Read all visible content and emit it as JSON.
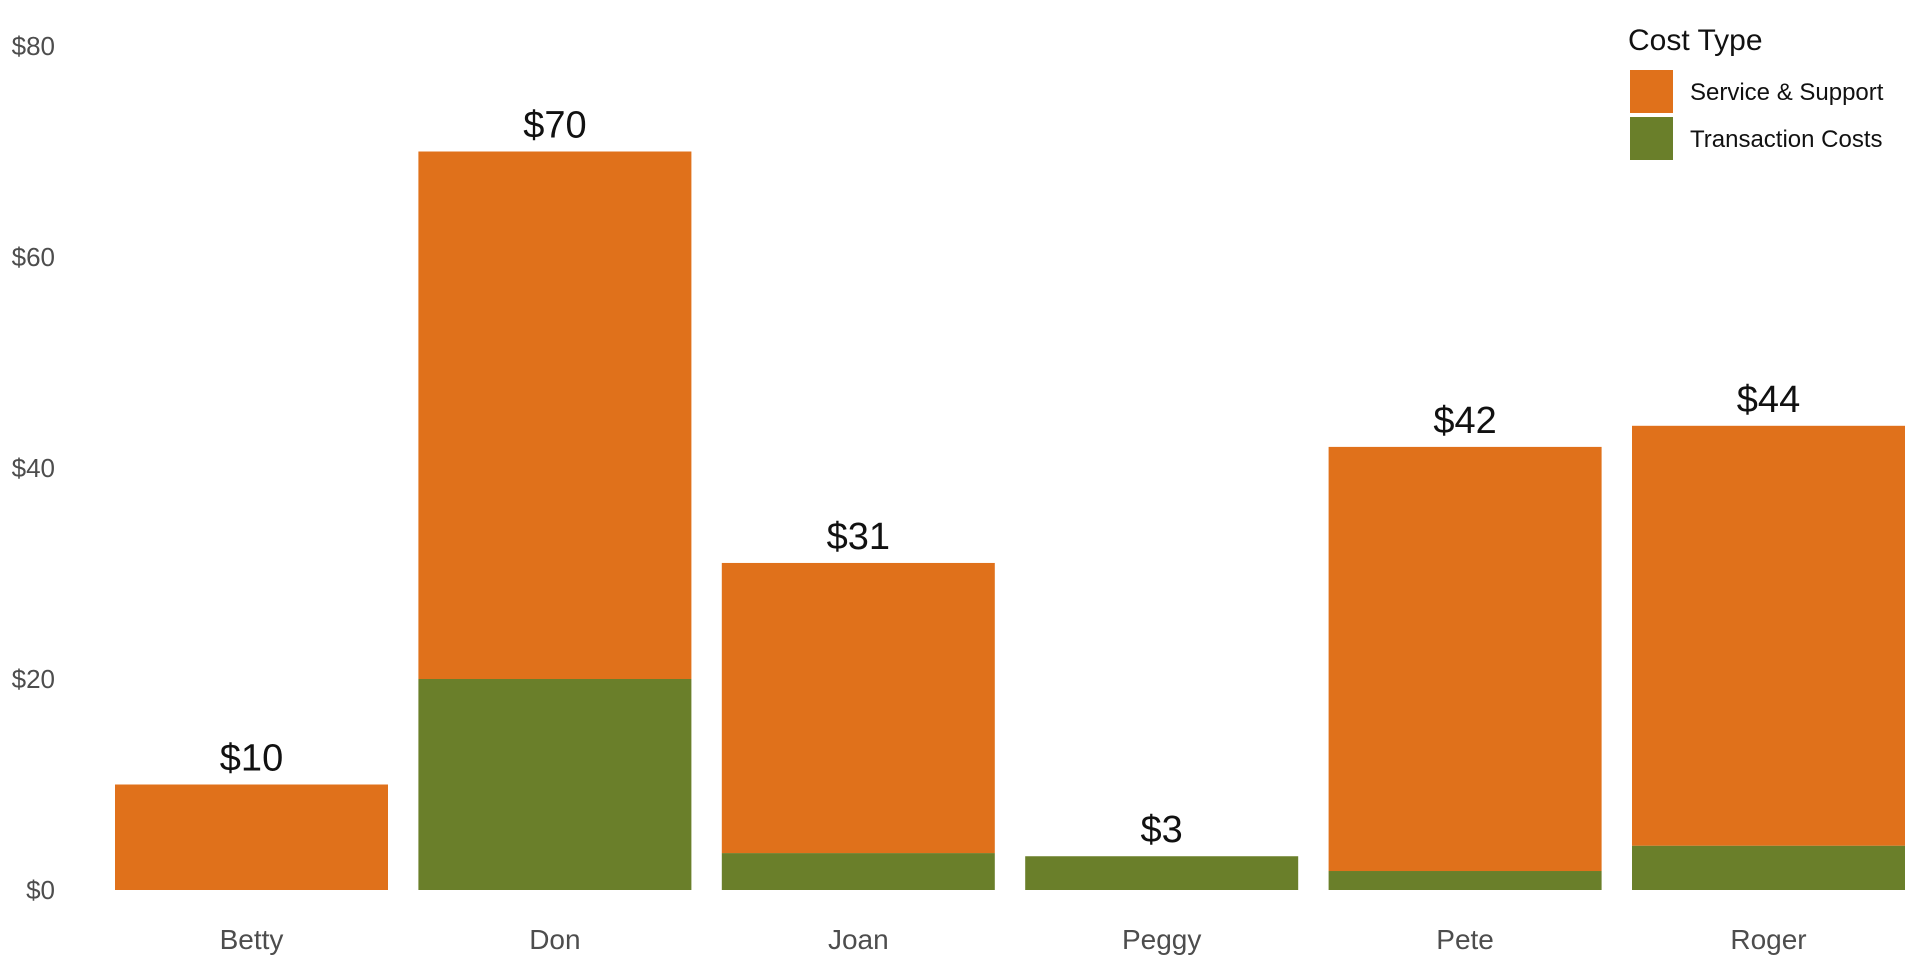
{
  "chart_data": {
    "type": "bar",
    "stacked": true,
    "categories": [
      "Betty",
      "Don",
      "Joan",
      "Peggy",
      "Pete",
      "Roger"
    ],
    "series": [
      {
        "name": "Transaction Costs",
        "color": "#6a7f2a",
        "values": [
          0,
          20,
          3.5,
          3.2,
          1.8,
          4.2
        ]
      },
      {
        "name": "Service & Support",
        "color": "#e0711b",
        "values": [
          10,
          50,
          27.5,
          0,
          40.2,
          39.8
        ]
      }
    ],
    "totals": [
      "$10",
      "$70",
      "$31",
      "$3",
      "$42",
      "$44"
    ],
    "ylim": [
      0,
      80
    ],
    "yticks": [
      0,
      20,
      40,
      60,
      80
    ],
    "ytick_labels": [
      "$0",
      "$20",
      "$40",
      "$60",
      "$80"
    ],
    "xlabel": "",
    "ylabel": "",
    "grid": false,
    "legend": {
      "title": "Cost Type",
      "position": "top-right",
      "items": [
        {
          "label": "Service & Support",
          "color": "#e0711b"
        },
        {
          "label": "Transaction Costs",
          "color": "#6a7f2a"
        }
      ]
    }
  }
}
